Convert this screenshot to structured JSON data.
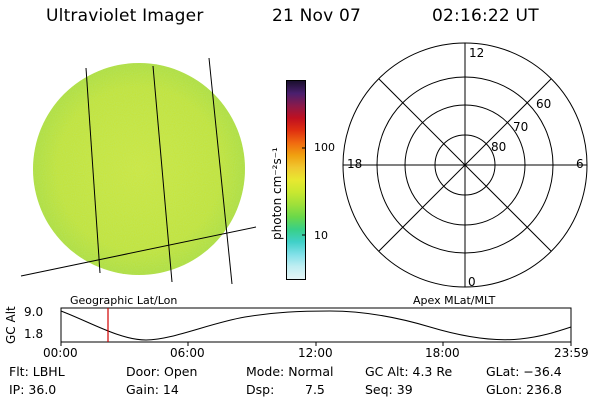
{
  "header": {
    "instrument": "Ultraviolet Imager",
    "date": "21 Nov 07",
    "time": "02:16:22 UT"
  },
  "image_panel": {
    "caption": "Geographic Lat/Lon",
    "fill_color": "#c6e334"
  },
  "colorbar": {
    "ticks": [
      "100",
      "10"
    ],
    "unit_label": "photon cm⁻²s⁻¹",
    "colors_top_to_bottom": [
      "#1a0f2e",
      "#4a1f6e",
      "#8a1a4a",
      "#c01020",
      "#e03010",
      "#f06a10",
      "#f0a010",
      "#f0c830",
      "#e8e830",
      "#c8e830",
      "#9ee03a",
      "#6ad84a",
      "#38d088",
      "#40d0c8",
      "#80e0e8",
      "#c0eef2",
      "#e4f4f6"
    ]
  },
  "polar_plot": {
    "caption": "Apex MLat/MLT",
    "mlt_labels": {
      "top": "12",
      "right": "6",
      "bottom": "0",
      "left": "18"
    },
    "lat_labels": [
      "60",
      "70",
      "80"
    ]
  },
  "altitude_plot": {
    "ylabel": "GC Alt",
    "yticks": [
      "9.0",
      "1.8"
    ],
    "xticks": [
      "00:00",
      "06:00",
      "12:00",
      "18:00",
      "23:59"
    ],
    "marker_color": "#d00000"
  },
  "info": {
    "flt": "Flt: LBHL",
    "ip": "IP: 36.0",
    "door": "Door: Open",
    "gain": "Gain: 14",
    "mode": "Mode: Normal",
    "dsp_label": "Dsp:",
    "dsp_value": "7.5",
    "gc_alt": "GC Alt: 4.3 Re",
    "seq": "Seq: 39",
    "glat": "GLat: −36.4",
    "glon": "GLon: 236.8"
  }
}
